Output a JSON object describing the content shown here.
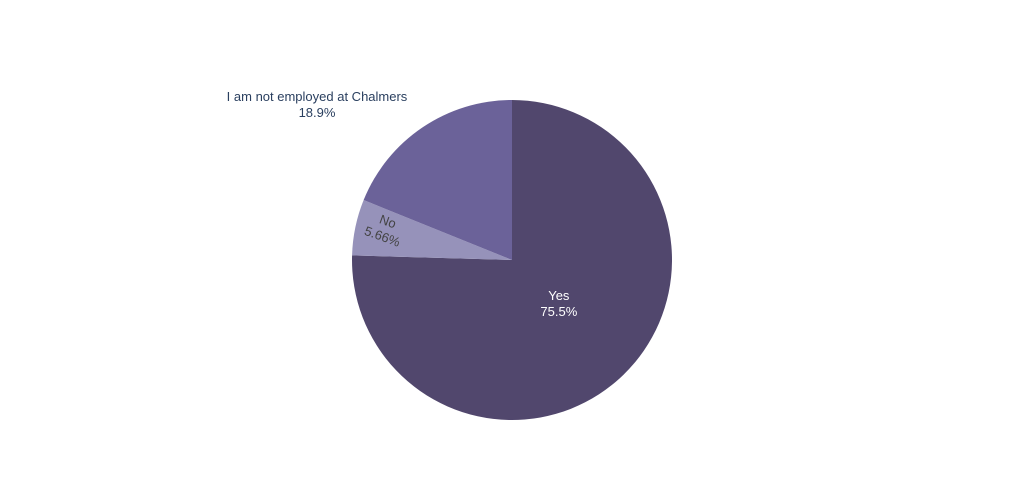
{
  "chart_data": {
    "type": "pie",
    "title": "",
    "categories": [
      "Yes",
      "No",
      "I am not employed at Chalmers"
    ],
    "values": [
      75.5,
      5.66,
      18.9
    ],
    "value_labels": [
      "75.5%",
      "5.66%",
      "18.9%"
    ],
    "colors": [
      "#51476d",
      "#9692ba",
      "#6b6299"
    ],
    "label_colors": [
      "#ffffff",
      "#444444",
      "#2a3f5f"
    ],
    "direction": "clockwise",
    "start_at": "top",
    "legend": "none"
  }
}
